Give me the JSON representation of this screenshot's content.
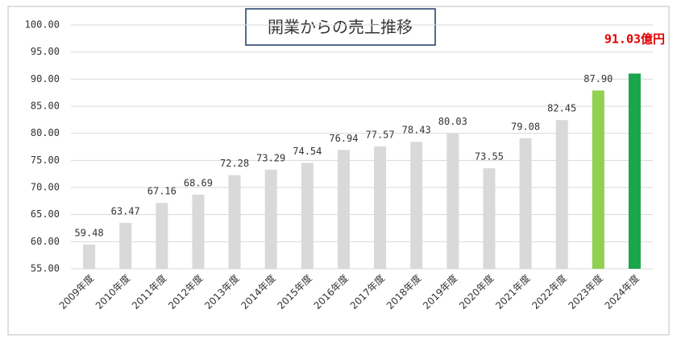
{
  "chart_data": {
    "type": "bar",
    "title": "開業からの売上推移",
    "categories": [
      "2009年度",
      "2010年度",
      "2011年度",
      "2012年度",
      "2013年度",
      "2014年度",
      "2015年度",
      "2016年度",
      "2017年度",
      "2018年度",
      "2019年度",
      "2020年度",
      "2021年度",
      "2022年度",
      "2023年度",
      "2024年度"
    ],
    "values": [
      59.48,
      63.47,
      67.16,
      68.69,
      72.28,
      73.29,
      74.54,
      76.94,
      77.57,
      78.43,
      80.03,
      73.55,
      79.08,
      82.45,
      87.9,
      91.03
    ],
    "value_labels": [
      "59.48",
      "63.47",
      "67.16",
      "68.69",
      "72.28",
      "73.29",
      "74.54",
      "76.94",
      "77.57",
      "78.43",
      "80.03",
      "73.55",
      "79.08",
      "82.45",
      "87.90",
      "91.03億円"
    ],
    "colors": [
      "#d9d9d9",
      "#d9d9d9",
      "#d9d9d9",
      "#d9d9d9",
      "#d9d9d9",
      "#d9d9d9",
      "#d9d9d9",
      "#d9d9d9",
      "#d9d9d9",
      "#d9d9d9",
      "#d9d9d9",
      "#d9d9d9",
      "#d9d9d9",
      "#d9d9d9",
      "#92d050",
      "#1aa64a"
    ],
    "value_label_colors": [
      "#333333",
      "#333333",
      "#333333",
      "#333333",
      "#333333",
      "#333333",
      "#333333",
      "#333333",
      "#333333",
      "#333333",
      "#333333",
      "#333333",
      "#333333",
      "#333333",
      "#333333",
      "#e00000"
    ],
    "ylim": [
      55,
      100
    ],
    "yticks": [
      {
        "value": 55,
        "label": "55.00"
      },
      {
        "value": 60,
        "label": "60.00"
      },
      {
        "value": 65,
        "label": "65.00"
      },
      {
        "value": 70,
        "label": "70.00"
      },
      {
        "value": 75,
        "label": "75.00"
      },
      {
        "value": 80,
        "label": "80.00"
      },
      {
        "value": 85,
        "label": "85.00"
      },
      {
        "value": 90,
        "label": "90.00"
      },
      {
        "value": 95,
        "label": "95.00"
      },
      {
        "value": 100,
        "label": "100.00"
      }
    ],
    "grid": true
  }
}
